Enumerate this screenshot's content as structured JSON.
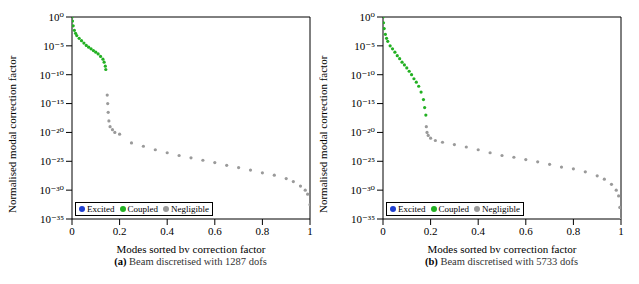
{
  "chart_data": [
    {
      "type": "scatter",
      "title": "(a) Beam discretised with 1287 dofs",
      "xlabel": "Modes sorted by correction factor",
      "ylabel": "Normalised modal correction factor",
      "xlim": [
        0,
        1
      ],
      "xticks": [
        0,
        0.2,
        0.4,
        0.6,
        0.8,
        1
      ],
      "ylim": [
        1e-35,
        1
      ],
      "yticks": [
        {
          "value": 1e-35,
          "label": "10⁻³⁵"
        },
        {
          "value": 1e-30,
          "label": "10⁻³⁰"
        },
        {
          "value": 1e-25,
          "label": "10⁻²⁵"
        },
        {
          "value": 1e-20,
          "label": "10⁻²⁰"
        },
        {
          "value": 1e-15,
          "label": "10⁻¹⁵"
        },
        {
          "value": 1e-10,
          "label": "10⁻¹⁰"
        },
        {
          "value": 1e-05,
          "label": "10⁻⁵"
        },
        {
          "value": 1,
          "label": "10⁰"
        }
      ],
      "log": "y",
      "legend": "lower left",
      "series": [
        {
          "name": "Excited",
          "color": "#1f3fd0",
          "marker": "circle",
          "x": [],
          "values": []
        },
        {
          "name": "Coupled",
          "color": "#22b022",
          "marker": "circle",
          "x": [
            0,
            0.002,
            0.005,
            0.01,
            0.015,
            0.02,
            0.03,
            0.04,
            0.05,
            0.06,
            0.07,
            0.08,
            0.09,
            0.1,
            0.11,
            0.12,
            0.13,
            0.135,
            0.14,
            0.142
          ],
          "values": [
            1,
            0.2,
            0.03,
            0.005,
            0.0015,
            0.0006,
            0.0002,
            8e-05,
            3e-05,
            1.2e-05,
            6e-06,
            3e-06,
            1.5e-06,
            8e-07,
            4e-07,
            1.5e-07,
            5e-08,
            1.5e-08,
            3e-09,
            8e-10
          ]
        },
        {
          "name": "Negligible",
          "color": "#9a9a9a",
          "marker": "circle",
          "x": [
            0.148,
            0.15,
            0.152,
            0.155,
            0.16,
            0.17,
            0.18,
            0.2,
            0.25,
            0.3,
            0.35,
            0.4,
            0.45,
            0.5,
            0.55,
            0.6,
            0.65,
            0.7,
            0.75,
            0.8,
            0.85,
            0.9,
            0.93,
            0.96,
            0.98,
            0.99,
            1
          ],
          "values": [
            3e-14,
            1e-15,
            3e-17,
            1e-18,
            1e-19,
            3e-20,
            1e-20,
            5e-21,
            1.5e-22,
            4e-23,
            1e-23,
            3e-24,
            1e-24,
            4e-25,
            1.5e-25,
            6e-26,
            2e-26,
            8e-27,
            3e-27,
            1e-27,
            4e-28,
            1e-28,
            3e-29,
            5e-30,
            1e-30,
            2e-31,
            3e-33
          ]
        }
      ]
    },
    {
      "type": "scatter",
      "title": "(b) Beam discretised with 5733 dofs",
      "xlabel": "Modes sorted by correction factor",
      "ylabel": "Normalised modal correction factor",
      "xlim": [
        0,
        1
      ],
      "xticks": [
        0,
        0.2,
        0.4,
        0.6,
        0.8,
        1
      ],
      "ylim": [
        1e-35,
        1
      ],
      "yticks": [
        {
          "value": 1e-35,
          "label": "10⁻³⁵"
        },
        {
          "value": 1e-30,
          "label": "10⁻³⁰"
        },
        {
          "value": 1e-25,
          "label": "10⁻²⁵"
        },
        {
          "value": 1e-20,
          "label": "10⁻²⁰"
        },
        {
          "value": 1e-15,
          "label": "10⁻¹⁵"
        },
        {
          "value": 1e-10,
          "label": "10⁻¹⁰"
        },
        {
          "value": 1e-05,
          "label": "10⁻⁵"
        },
        {
          "value": 1,
          "label": "10⁰"
        }
      ],
      "log": "y",
      "legend": "lower left",
      "series": [
        {
          "name": "Excited",
          "color": "#1f3fd0",
          "marker": "circle",
          "x": [],
          "values": []
        },
        {
          "name": "Coupled",
          "color": "#22b022",
          "marker": "circle",
          "x": [
            0,
            0.002,
            0.005,
            0.01,
            0.015,
            0.02,
            0.03,
            0.04,
            0.05,
            0.06,
            0.07,
            0.08,
            0.09,
            0.1,
            0.11,
            0.12,
            0.13,
            0.14,
            0.15,
            0.16,
            0.17,
            0.175,
            0.18
          ],
          "values": [
            1,
            0.1,
            0.01,
            0.001,
            0.0002,
            6e-05,
            1e-05,
            3e-06,
            8e-07,
            2e-07,
            6e-08,
            1.5e-08,
            5e-09,
            1.5e-09,
            4e-10,
            1e-10,
            2e-11,
            5e-12,
            1e-12,
            1e-13,
            5e-15,
            2e-16,
            1e-17
          ]
        },
        {
          "name": "Negligible",
          "color": "#9a9a9a",
          "marker": "circle",
          "x": [
            0.182,
            0.185,
            0.19,
            0.2,
            0.22,
            0.25,
            0.3,
            0.35,
            0.4,
            0.45,
            0.5,
            0.55,
            0.6,
            0.65,
            0.7,
            0.75,
            0.8,
            0.85,
            0.9,
            0.93,
            0.96,
            0.98,
            0.99,
            0.995,
            1
          ],
          "values": [
            1e-19,
            1e-20,
            3e-21,
            1e-21,
            4e-22,
            2e-22,
            8e-23,
            3e-23,
            1e-23,
            3e-24,
            1e-24,
            5e-25,
            2e-25,
            8e-26,
            3e-26,
            1e-26,
            5e-27,
            1.5e-27,
            3e-28,
            8e-29,
            1e-29,
            1e-30,
            1e-31,
            1e-33,
            1e-35
          ]
        }
      ]
    }
  ]
}
